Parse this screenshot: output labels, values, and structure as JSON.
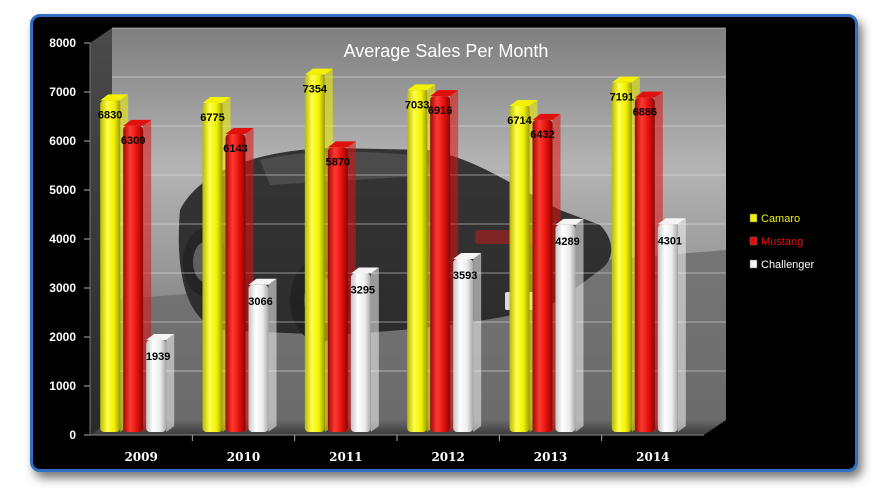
{
  "chart_data": {
    "type": "bar",
    "title": "Average Sales Per Month",
    "categories": [
      "2009",
      "2010",
      "2011",
      "2012",
      "2013",
      "2014"
    ],
    "series": [
      {
        "name": "Camaro",
        "values": [
          6830,
          6775,
          7354,
          7033,
          6714,
          7191
        ],
        "color": "#f2f200"
      },
      {
        "name": "Mustang",
        "values": [
          6309,
          6143,
          5870,
          6916,
          6432,
          6886
        ],
        "color": "#e0100c"
      },
      {
        "name": "Challenger",
        "values": [
          1939,
          3066,
          3295,
          3593,
          4289,
          4301
        ],
        "color": "#f4f4f4"
      }
    ],
    "y_ticks": [
      "0",
      "1000",
      "2000",
      "3000",
      "4000",
      "5000",
      "6000",
      "7000",
      "8000"
    ],
    "ylim": [
      0,
      8000
    ],
    "legend_position": "right",
    "grid": true,
    "background": "car photo (grayscale)"
  }
}
